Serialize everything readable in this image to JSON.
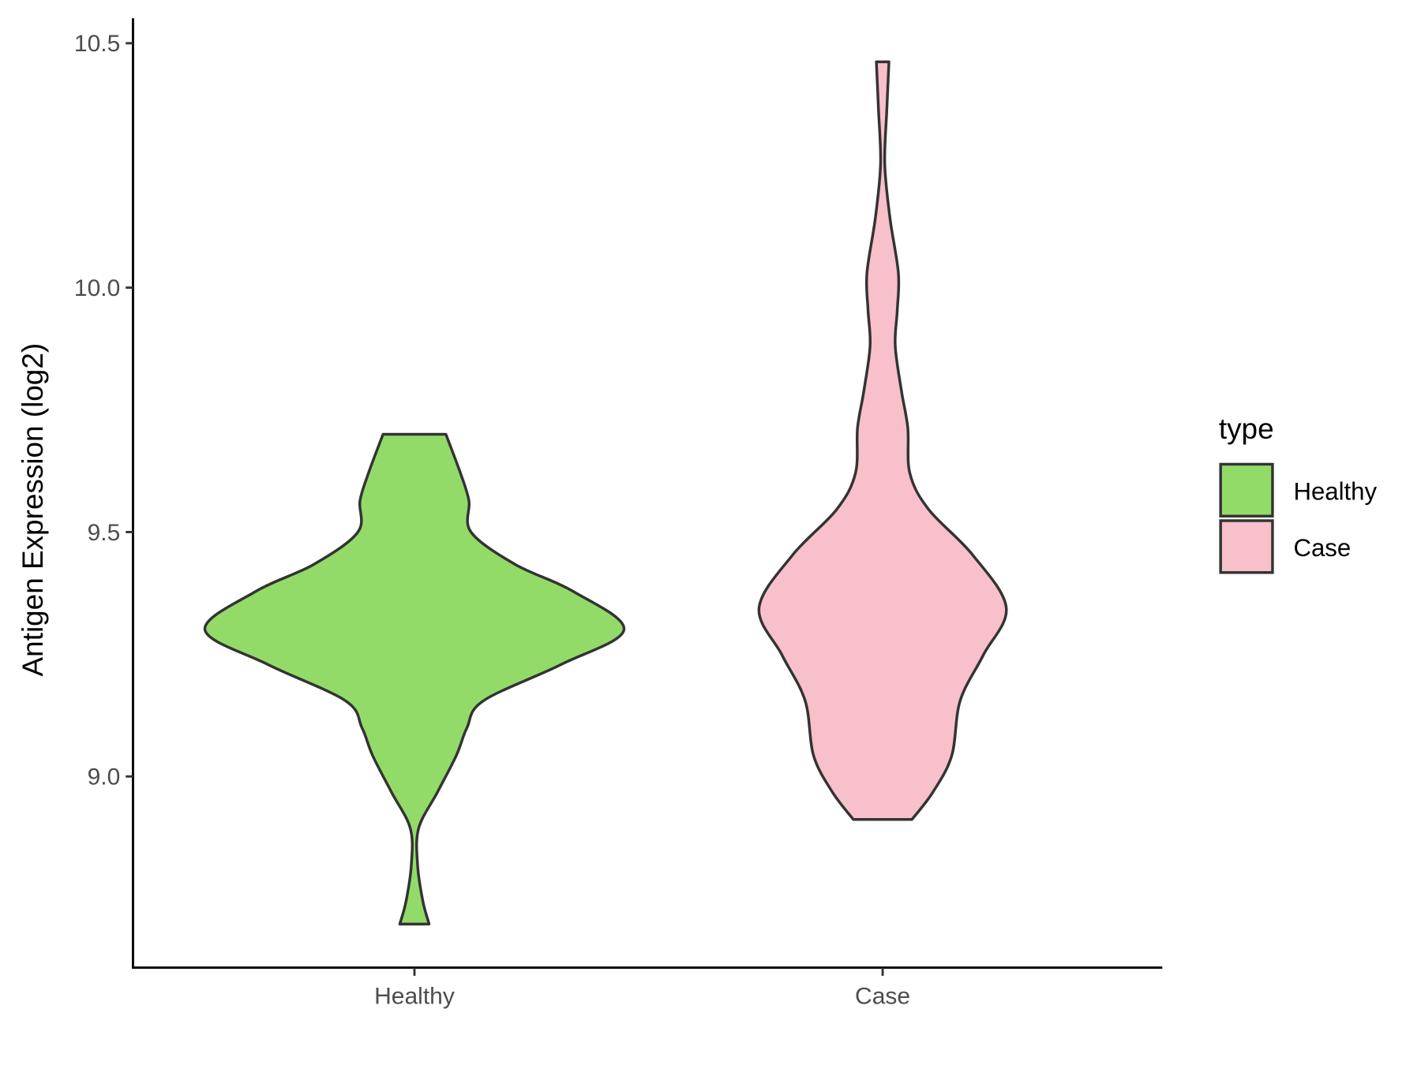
{
  "chart_data": {
    "type": "violin",
    "title": "",
    "xlabel": "",
    "ylabel": "Antigen Expression (log2)",
    "categories": [
      "Healthy",
      "Case"
    ],
    "yticks": [
      "9.0",
      "9.5",
      "10.0",
      "10.5"
    ],
    "ytick_values": [
      9.0,
      9.5,
      10.0,
      10.5
    ],
    "ylim": [
      8.62,
      10.55
    ],
    "grid": false,
    "legend": {
      "title": "type",
      "position": "right",
      "entries": [
        "Healthy",
        "Case"
      ]
    },
    "series": [
      {
        "name": "Healthy",
        "color": "#93DB69",
        "min": 8.698,
        "max": 9.7,
        "profile": [
          [
            9.7,
            0.15
          ],
          [
            9.62,
            0.22
          ],
          [
            9.564,
            0.26
          ],
          [
            9.5,
            0.27
          ],
          [
            9.434,
            0.48
          ],
          [
            9.378,
            0.76
          ],
          [
            9.3,
            1.0
          ],
          [
            9.229,
            0.7
          ],
          [
            9.155,
            0.33
          ],
          [
            9.099,
            0.25
          ],
          [
            9.043,
            0.2
          ],
          [
            8.968,
            0.11
          ],
          [
            8.894,
            0.02
          ],
          [
            8.819,
            0.015
          ],
          [
            8.745,
            0.04
          ],
          [
            8.698,
            0.07
          ]
        ]
      },
      {
        "name": "Case",
        "color": "#F7C0CB",
        "min": 8.912,
        "max": 10.462,
        "profile": [
          [
            10.462,
            0.03
          ],
          [
            10.365,
            0.02
          ],
          [
            10.253,
            0.01
          ],
          [
            10.142,
            0.035
          ],
          [
            10.03,
            0.075
          ],
          [
            9.955,
            0.07
          ],
          [
            9.881,
            0.06
          ],
          [
            9.788,
            0.09
          ],
          [
            9.713,
            0.12
          ],
          [
            9.62,
            0.13
          ],
          [
            9.546,
            0.22
          ],
          [
            9.453,
            0.43
          ],
          [
            9.345,
            0.59
          ],
          [
            9.248,
            0.48
          ],
          [
            9.155,
            0.37
          ],
          [
            9.043,
            0.33
          ],
          [
            8.968,
            0.24
          ],
          [
            8.912,
            0.14
          ]
        ]
      }
    ]
  }
}
